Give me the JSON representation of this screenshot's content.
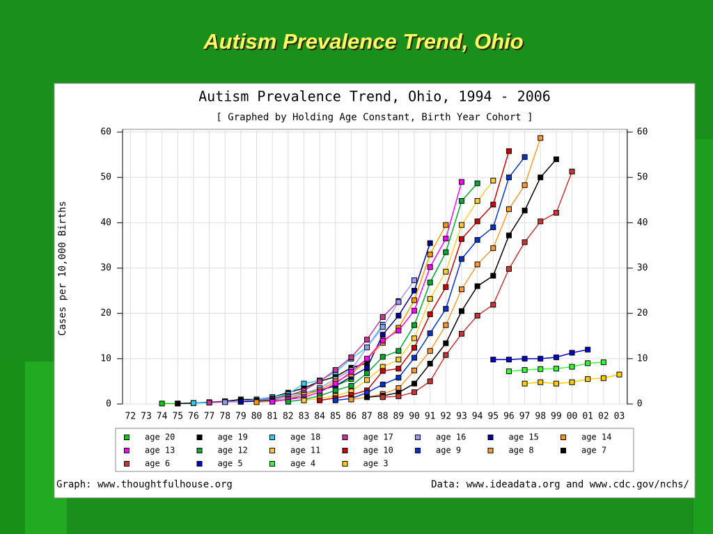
{
  "slide_title": "Autism Prevalence Trend, Ohio",
  "chart_data": {
    "type": "line",
    "title": "Autism Prevalence Trend, Ohio, 1994 - 2006",
    "subtitle": "[ Graphed by Holding Age Constant, Birth Year Cohort ]",
    "y_label": "Cases per 10,000 Births",
    "footer_left": "Graph: www.thoughtfulhouse.org",
    "footer_right": "Data: www.ideadata.org and www.cdc.gov/nchs/",
    "categories": [
      "72",
      "73",
      "74",
      "75",
      "76",
      "77",
      "78",
      "79",
      "80",
      "81",
      "82",
      "83",
      "84",
      "85",
      "86",
      "87",
      "88",
      "89",
      "90",
      "91",
      "92",
      "93",
      "94",
      "95",
      "96",
      "97",
      "98",
      "99",
      "00",
      "01",
      "02",
      "03"
    ],
    "ylim": [
      0,
      60
    ],
    "yticks": [
      0,
      10,
      20,
      30,
      40,
      50,
      60
    ],
    "grid": true,
    "series": [
      {
        "name": "age 20",
        "color": "#00cc00",
        "values": [
          null,
          null,
          0.1,
          0.1,
          0.2,
          0.3,
          0.5,
          0.6,
          0.8,
          1.2,
          2,
          2.5,
          3,
          4,
          5.5,
          null,
          null,
          null,
          null,
          null,
          null,
          null,
          null,
          null,
          null,
          null,
          null,
          null,
          null,
          null,
          null,
          null
        ]
      },
      {
        "name": "age 19",
        "color": "#000000",
        "values": [
          null,
          null,
          null,
          0.1,
          0.2,
          0.4,
          0.6,
          1,
          1,
          1.5,
          2.5,
          3.5,
          5,
          6,
          8,
          9,
          null,
          null,
          null,
          null,
          null,
          null,
          null,
          null,
          null,
          null,
          null,
          null,
          null,
          null,
          null,
          null
        ]
      },
      {
        "name": "age 18",
        "color": "#33ccff",
        "values": [
          null,
          null,
          null,
          null,
          0.2,
          0.3,
          0.5,
          0.6,
          1,
          1.5,
          2.2,
          4.5,
          5.2,
          7,
          10,
          12.5,
          17.5,
          null,
          null,
          null,
          null,
          null,
          null,
          null,
          null,
          null,
          null,
          null,
          null,
          null,
          null,
          null
        ]
      },
      {
        "name": "age 17",
        "color": "#cc3399",
        "values": [
          null,
          null,
          null,
          null,
          null,
          0.3,
          0.5,
          0.6,
          0.8,
          1.2,
          1.8,
          3,
          5,
          7.5,
          10.3,
          14.2,
          19.2,
          22.7,
          null,
          null,
          null,
          null,
          null,
          null,
          null,
          null,
          null,
          null,
          null,
          null,
          null,
          null
        ]
      },
      {
        "name": "age 16",
        "color": "#9999ff",
        "values": [
          null,
          null,
          null,
          null,
          null,
          null,
          0.4,
          0.5,
          0.7,
          1,
          1.5,
          2.3,
          3.5,
          5.5,
          7.5,
          12.5,
          17,
          22.5,
          27.3,
          null,
          null,
          null,
          null,
          null,
          null,
          null,
          null,
          null,
          null,
          null,
          null,
          null
        ]
      },
      {
        "name": "age 15",
        "color": "#000099",
        "values": [
          null,
          null,
          null,
          null,
          null,
          null,
          null,
          0.5,
          0.6,
          0.8,
          1,
          2,
          3,
          4,
          6,
          8,
          15.3,
          19.5,
          25,
          35.5,
          null,
          null,
          null,
          null,
          null,
          null,
          null,
          null,
          null,
          null,
          null,
          null
        ]
      },
      {
        "name": "age 14",
        "color": "#ff9900",
        "values": [
          null,
          null,
          null,
          null,
          null,
          null,
          null,
          null,
          0.4,
          0.6,
          1.2,
          2,
          3,
          5,
          6.5,
          9.8,
          13.5,
          16.8,
          22.9,
          33,
          39.5,
          null,
          null,
          null,
          null,
          null,
          null,
          null,
          null,
          null,
          null,
          null
        ]
      },
      {
        "name": "age 13",
        "color": "#ff00ff",
        "values": [
          null,
          null,
          null,
          null,
          null,
          null,
          null,
          null,
          null,
          0.5,
          1,
          1.5,
          2.6,
          4.5,
          7.1,
          10,
          14,
          16.2,
          20.6,
          30.2,
          36.5,
          49,
          null,
          null,
          null,
          null,
          null,
          null,
          null,
          null,
          null,
          null
        ]
      },
      {
        "name": "age 12",
        "color": "#00aa33",
        "values": [
          null,
          null,
          null,
          null,
          null,
          null,
          null,
          null,
          null,
          null,
          0.5,
          1,
          1.8,
          3,
          4,
          6.8,
          10.4,
          11.7,
          17.4,
          26.8,
          33.5,
          44.8,
          48.7,
          null,
          null,
          null,
          null,
          null,
          null,
          null,
          null,
          null
        ]
      },
      {
        "name": "age 11",
        "color": "#ffcc33",
        "values": [
          null,
          null,
          null,
          null,
          null,
          null,
          null,
          null,
          null,
          null,
          null,
          0.8,
          1.2,
          1.8,
          2.8,
          5.3,
          8.2,
          9.8,
          14.5,
          23.2,
          29.2,
          39.5,
          44.8,
          49.3,
          null,
          null,
          null,
          null,
          null,
          null,
          null,
          null
        ]
      },
      {
        "name": "age 10",
        "color": "#cc0000",
        "values": [
          null,
          null,
          null,
          null,
          null,
          null,
          null,
          null,
          null,
          null,
          null,
          null,
          0.8,
          1.3,
          2,
          3,
          7.3,
          7.8,
          12.4,
          19.8,
          25.8,
          36.4,
          40.3,
          44,
          55.8,
          null,
          null,
          null,
          null,
          null,
          null,
          null
        ]
      },
      {
        "name": "age 9",
        "color": "#0033cc",
        "values": [
          null,
          null,
          null,
          null,
          null,
          null,
          null,
          null,
          null,
          null,
          null,
          null,
          null,
          0.8,
          1.2,
          2.5,
          4.3,
          5.8,
          10.2,
          15.6,
          21,
          32,
          36.2,
          39,
          50,
          54.5,
          null,
          null,
          null,
          null,
          null,
          null
        ]
      },
      {
        "name": "age 8",
        "color": "#ff9933",
        "values": [
          null,
          null,
          null,
          null,
          null,
          null,
          null,
          null,
          null,
          null,
          null,
          null,
          null,
          null,
          1,
          1.5,
          2.2,
          3.5,
          7.4,
          11.7,
          17.4,
          25.3,
          30.8,
          34.4,
          43,
          48.3,
          58.7,
          null,
          null,
          null,
          null,
          null
        ]
      },
      {
        "name": "age 7",
        "color": "#000000",
        "values": [
          null,
          null,
          null,
          null,
          null,
          null,
          null,
          null,
          null,
          null,
          null,
          null,
          null,
          null,
          null,
          1.5,
          1.8,
          2.5,
          4.5,
          8.9,
          13.4,
          20.5,
          26,
          28.3,
          37.2,
          42.7,
          50,
          54,
          null,
          null,
          null,
          null
        ]
      },
      {
        "name": "age 6",
        "color": "#cc3333",
        "values": [
          null,
          null,
          null,
          null,
          null,
          null,
          null,
          null,
          null,
          null,
          null,
          null,
          null,
          null,
          null,
          null,
          1.5,
          1.7,
          2.6,
          5,
          10.8,
          15.5,
          19.5,
          21.9,
          29.8,
          35.7,
          40.3,
          42.2,
          51.3,
          null,
          null,
          null
        ]
      },
      {
        "name": "age 5",
        "color": "#0000cc",
        "values": [
          null,
          null,
          null,
          null,
          null,
          null,
          null,
          null,
          null,
          null,
          null,
          null,
          null,
          null,
          null,
          null,
          null,
          null,
          null,
          null,
          null,
          null,
          null,
          9.8,
          9.8,
          10,
          10,
          10.3,
          11.3,
          12,
          null,
          null
        ]
      },
      {
        "name": "age 4",
        "color": "#33ff33",
        "values": [
          null,
          null,
          null,
          null,
          null,
          null,
          null,
          null,
          null,
          null,
          null,
          null,
          null,
          null,
          null,
          null,
          null,
          null,
          null,
          null,
          null,
          null,
          null,
          null,
          7.2,
          7.5,
          7.7,
          7.8,
          8.2,
          9,
          9.2,
          null
        ]
      },
      {
        "name": "age 3",
        "color": "#ffcc00",
        "values": [
          null,
          null,
          null,
          null,
          null,
          null,
          null,
          null,
          null,
          null,
          null,
          null,
          null,
          null,
          null,
          null,
          null,
          null,
          null,
          null,
          null,
          null,
          null,
          null,
          null,
          4.5,
          4.8,
          4.5,
          4.8,
          5.5,
          5.7,
          6.5
        ]
      }
    ]
  }
}
